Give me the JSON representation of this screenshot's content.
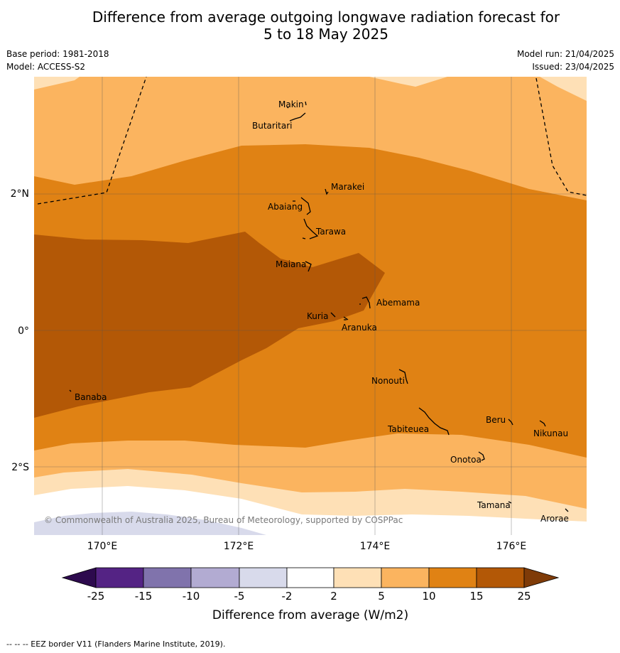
{
  "title_line1": "Difference from average outgoing longwave radiation forecast for",
  "title_line2": "5 to 18 May 2025",
  "base_period": "Base period: 1981-2018",
  "model": "Model: ACCESS-S2",
  "model_run": "Model run: 21/04/2025",
  "issued": "Issued: 23/04/2025",
  "copyright": "© Commonwealth of Australia 2025, Bureau of Meteorology, supported by COSPPac",
  "footer": "--  --  -- EEZ border V11 (Flanders Marine Institute, 2019).",
  "map": {
    "lat_ticks": [
      {
        "value": 2,
        "label": "2°N"
      },
      {
        "value": 0,
        "label": "0°"
      },
      {
        "value": -2,
        "label": "2°S"
      }
    ],
    "lon_ticks": [
      {
        "value": 170,
        "label": "170°E"
      },
      {
        "value": 172,
        "label": "172°E"
      },
      {
        "value": 174,
        "label": "174°E"
      },
      {
        "value": 176,
        "label": "176°E"
      }
    ],
    "places": [
      "Makin",
      "Butaritari",
      "Marakei",
      "Abaiang",
      "Tarawa",
      "Maiana",
      "Abemama",
      "Kuria",
      "Aranuka",
      "Banaba",
      "Nonouti",
      "Beru",
      "Nikunau",
      "Tabiteuea",
      "Onotoa",
      "Tamana",
      "Arorae"
    ]
  },
  "colorbar": {
    "label": "Difference from average (W/m2)",
    "ticks": [
      "-25",
      "-15",
      "-10",
      "-5",
      "-2",
      "2",
      "5",
      "10",
      "15",
      "25"
    ],
    "colors": {
      "lt25": "#2d0a4e",
      "n25_15": "#542384",
      "n15_10": "#8073ac",
      "n10_5": "#b2abd2",
      "n5_2": "#d8daeb",
      "n2_2": "#ffffff",
      "p2_5": "#fee0b6",
      "p5_10": "#fbb45f",
      "p10_15": "#e08214",
      "p15_25": "#b35806",
      "gt25": "#7f3b08"
    }
  }
}
